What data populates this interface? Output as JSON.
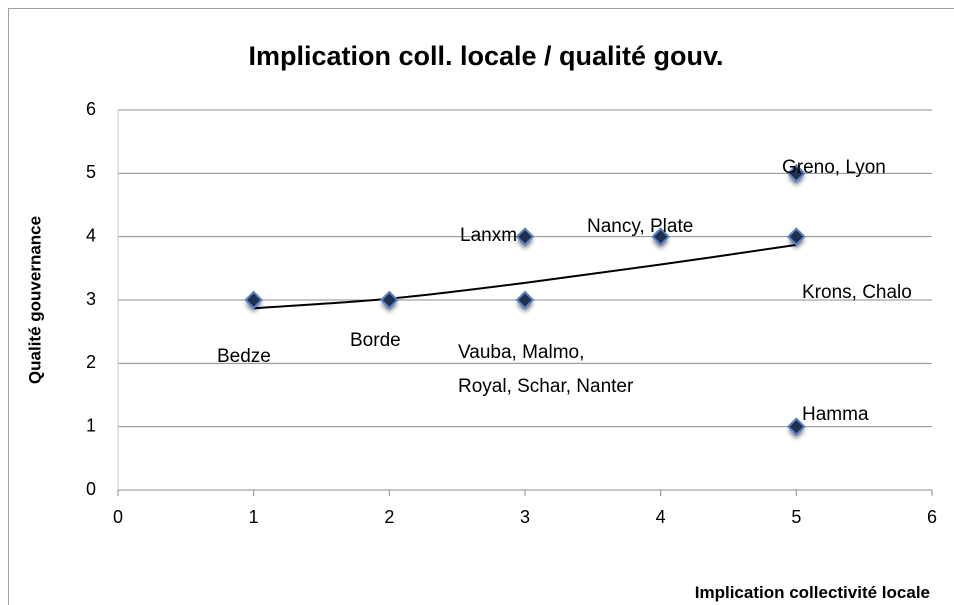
{
  "chart_data": {
    "type": "scatter",
    "title": "Implication coll. locale / qualité gouv.",
    "x_label": "Implication collectivité locale",
    "y_label": "Qualité gouvernance",
    "series": [
      {
        "name": "Qualité gouvernance",
        "color": "#1f3050",
        "x": [
          1,
          2,
          3,
          3,
          4,
          5,
          5,
          5
        ],
        "values": [
          3,
          3,
          4,
          3,
          4,
          5,
          4,
          1
        ]
      }
    ],
    "trendline": {
      "x": [
        1,
        2,
        3,
        4,
        5
      ],
      "values": [
        2.87,
        3.02,
        3.27,
        3.56,
        3.87
      ]
    },
    "annotations": [
      {
        "lines": [
          "Bedze"
        ]
      },
      {
        "lines": [
          "Borde"
        ]
      },
      {
        "lines": [
          "Lanxm"
        ]
      },
      {
        "lines": [
          "Vauba, Malmo,",
          "Royal, Schar, Nanter"
        ]
      },
      {
        "lines": [
          "Nancy, Plate"
        ]
      },
      {
        "lines": [
          "Greno, Lyon"
        ]
      },
      {
        "lines": [
          "Krons, Chalo"
        ]
      },
      {
        "lines": [
          "Hamma"
        ]
      }
    ],
    "xlim": [
      0,
      6
    ],
    "xticks": [
      0,
      1,
      2,
      3,
      4,
      5,
      6
    ],
    "ylim": [
      0,
      6
    ],
    "yticks": [
      0,
      1,
      2,
      3,
      4,
      5,
      6
    ],
    "grid": true
  }
}
